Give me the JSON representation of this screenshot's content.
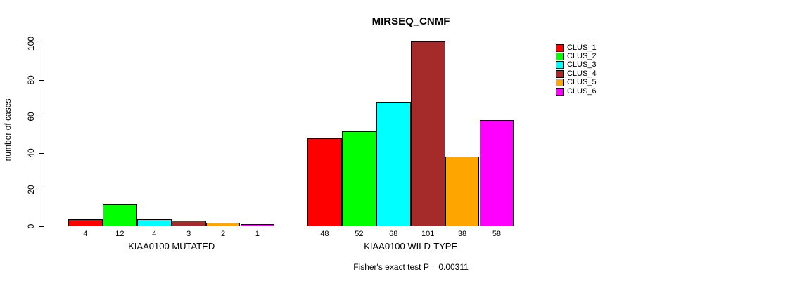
{
  "chart_data": {
    "type": "bar",
    "title": "MIRSEQ_CNMF",
    "ylabel": "number of cases",
    "xlabel": "",
    "ylim": [
      0,
      100
    ],
    "yticks": [
      0,
      20,
      40,
      60,
      80,
      100
    ],
    "grid": "off",
    "legend_position": "right",
    "legend": [
      {
        "label": "CLUS_1",
        "color": "#FF0000"
      },
      {
        "label": "CLUS_2",
        "color": "#00FF00"
      },
      {
        "label": "CLUS_3",
        "color": "#00FFFF"
      },
      {
        "label": "CLUS_4",
        "color": "#A52A2A"
      },
      {
        "label": "CLUS_5",
        "color": "#FFA500"
      },
      {
        "label": "CLUS_6",
        "color": "#FF00FF"
      }
    ],
    "series_colors": [
      "#FF0000",
      "#00FF00",
      "#00FFFF",
      "#A52A2A",
      "#FFA500",
      "#FF00FF"
    ],
    "groups": [
      {
        "label": "KIAA0100 MUTATED",
        "values": [
          4,
          12,
          4,
          3,
          2,
          1
        ]
      },
      {
        "label": "KIAA0100 WILD-TYPE",
        "values": [
          48,
          52,
          68,
          101,
          38,
          58
        ]
      }
    ],
    "bar_value_labels": [
      [
        "4",
        "12",
        "4",
        "3",
        "2",
        "1"
      ],
      [
        "48",
        "52",
        "68",
        "101",
        "38",
        "58"
      ]
    ],
    "footnote": "Fisher's exact test P = 0.00311"
  }
}
